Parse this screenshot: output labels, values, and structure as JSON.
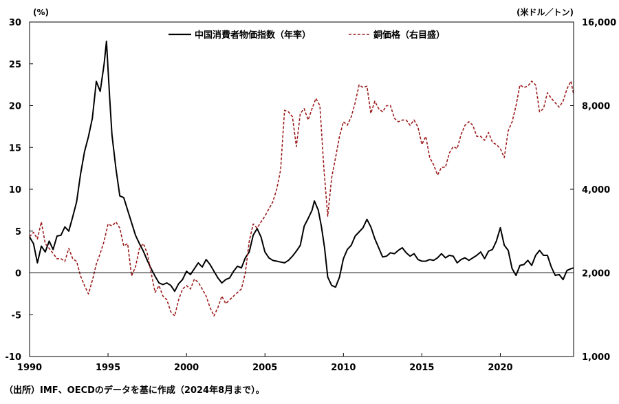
{
  "chart_data": {
    "type": "line",
    "x_ticks": [
      "1990",
      "1995",
      "2000",
      "2005",
      "2010",
      "2015",
      "2020"
    ],
    "xlim": [
      1990,
      2024.67
    ],
    "left_axis": {
      "unit": "(%)",
      "ylim": [
        -10,
        30
      ],
      "ticks": [
        30,
        25,
        20,
        15,
        10,
        5,
        0,
        -5,
        -10
      ],
      "tick_labels": [
        "30",
        "25",
        "20",
        "15",
        "10",
        "5",
        "0",
        "-5",
        "-10"
      ]
    },
    "right_axis": {
      "unit": "(米ドル／トン)",
      "scale": "log",
      "ylim": [
        1000,
        16000
      ],
      "ticks": [
        16000,
        8000,
        4000,
        2000,
        1000
      ],
      "tick_labels": [
        "16,000",
        "8,000",
        "4,000",
        "2,000",
        "1,000"
      ]
    },
    "legend_position": "top-center",
    "series": [
      {
        "name": "中国消費者物価指数（年率）",
        "axis": "left",
        "color": "#000000",
        "style": "solid",
        "points": [
          [
            1990.0,
            4.3
          ],
          [
            1990.25,
            3.5
          ],
          [
            1990.5,
            1.2
          ],
          [
            1990.75,
            3.2
          ],
          [
            1991.0,
            2.5
          ],
          [
            1991.25,
            3.8
          ],
          [
            1991.5,
            2.8
          ],
          [
            1991.75,
            4.4
          ],
          [
            1992.0,
            4.5
          ],
          [
            1992.25,
            5.5
          ],
          [
            1992.5,
            5.0
          ],
          [
            1992.75,
            6.7
          ],
          [
            1993.0,
            8.5
          ],
          [
            1993.25,
            11.8
          ],
          [
            1993.5,
            14.5
          ],
          [
            1993.75,
            16.3
          ],
          [
            1994.0,
            18.5
          ],
          [
            1994.25,
            22.9
          ],
          [
            1994.5,
            21.7
          ],
          [
            1994.75,
            25.0
          ],
          [
            1994.9,
            27.7
          ],
          [
            1995.1,
            21.0
          ],
          [
            1995.25,
            16.5
          ],
          [
            1995.5,
            12.5
          ],
          [
            1995.75,
            9.2
          ],
          [
            1996.0,
            9.0
          ],
          [
            1996.25,
            7.5
          ],
          [
            1996.5,
            6.0
          ],
          [
            1996.75,
            4.5
          ],
          [
            1997.0,
            3.5
          ],
          [
            1997.25,
            2.6
          ],
          [
            1997.5,
            1.5
          ],
          [
            1997.75,
            0.5
          ],
          [
            1998.0,
            -0.4
          ],
          [
            1998.25,
            -1.2
          ],
          [
            1998.5,
            -1.4
          ],
          [
            1998.75,
            -1.2
          ],
          [
            1999.0,
            -1.5
          ],
          [
            1999.25,
            -2.2
          ],
          [
            1999.5,
            -1.3
          ],
          [
            1999.75,
            -0.8
          ],
          [
            2000.0,
            0.2
          ],
          [
            2000.25,
            -0.2
          ],
          [
            2000.5,
            0.5
          ],
          [
            2000.75,
            1.2
          ],
          [
            2001.0,
            0.7
          ],
          [
            2001.25,
            1.6
          ],
          [
            2001.5,
            1.0
          ],
          [
            2001.75,
            0.2
          ],
          [
            2002.0,
            -0.6
          ],
          [
            2002.25,
            -1.2
          ],
          [
            2002.5,
            -0.8
          ],
          [
            2002.75,
            -0.6
          ],
          [
            2003.0,
            0.2
          ],
          [
            2003.25,
            0.8
          ],
          [
            2003.5,
            0.6
          ],
          [
            2003.75,
            1.8
          ],
          [
            2004.0,
            2.5
          ],
          [
            2004.25,
            4.5
          ],
          [
            2004.5,
            5.3
          ],
          [
            2004.75,
            4.3
          ],
          [
            2005.0,
            2.5
          ],
          [
            2005.25,
            1.8
          ],
          [
            2005.5,
            1.5
          ],
          [
            2005.75,
            1.4
          ],
          [
            2006.0,
            1.3
          ],
          [
            2006.25,
            1.2
          ],
          [
            2006.5,
            1.5
          ],
          [
            2006.75,
            2.0
          ],
          [
            2007.0,
            2.6
          ],
          [
            2007.25,
            3.3
          ],
          [
            2007.5,
            5.6
          ],
          [
            2007.75,
            6.5
          ],
          [
            2008.0,
            7.5
          ],
          [
            2008.15,
            8.6
          ],
          [
            2008.4,
            7.5
          ],
          [
            2008.6,
            5.5
          ],
          [
            2008.8,
            3.0
          ],
          [
            2009.0,
            -0.5
          ],
          [
            2009.25,
            -1.5
          ],
          [
            2009.5,
            -1.7
          ],
          [
            2009.75,
            -0.5
          ],
          [
            2010.0,
            1.7
          ],
          [
            2010.25,
            2.8
          ],
          [
            2010.5,
            3.3
          ],
          [
            2010.75,
            4.4
          ],
          [
            2011.0,
            4.9
          ],
          [
            2011.25,
            5.4
          ],
          [
            2011.5,
            6.4
          ],
          [
            2011.75,
            5.5
          ],
          [
            2012.0,
            4.1
          ],
          [
            2012.25,
            3.0
          ],
          [
            2012.5,
            1.9
          ],
          [
            2012.75,
            2.0
          ],
          [
            2013.0,
            2.4
          ],
          [
            2013.25,
            2.3
          ],
          [
            2013.5,
            2.7
          ],
          [
            2013.75,
            3.0
          ],
          [
            2014.0,
            2.4
          ],
          [
            2014.25,
            2.0
          ],
          [
            2014.5,
            2.3
          ],
          [
            2014.75,
            1.6
          ],
          [
            2015.0,
            1.4
          ],
          [
            2015.25,
            1.4
          ],
          [
            2015.5,
            1.6
          ],
          [
            2015.75,
            1.5
          ],
          [
            2016.0,
            1.8
          ],
          [
            2016.25,
            2.3
          ],
          [
            2016.5,
            1.8
          ],
          [
            2016.75,
            2.1
          ],
          [
            2017.0,
            2.0
          ],
          [
            2017.25,
            1.2
          ],
          [
            2017.5,
            1.6
          ],
          [
            2017.75,
            1.8
          ],
          [
            2018.0,
            1.5
          ],
          [
            2018.25,
            1.8
          ],
          [
            2018.5,
            2.1
          ],
          [
            2018.75,
            2.5
          ],
          [
            2019.0,
            1.7
          ],
          [
            2019.25,
            2.6
          ],
          [
            2019.5,
            2.8
          ],
          [
            2019.75,
            3.8
          ],
          [
            2020.0,
            5.4
          ],
          [
            2020.25,
            3.3
          ],
          [
            2020.5,
            2.7
          ],
          [
            2020.75,
            0.5
          ],
          [
            2021.0,
            -0.3
          ],
          [
            2021.25,
            0.9
          ],
          [
            2021.5,
            1.0
          ],
          [
            2021.75,
            1.5
          ],
          [
            2022.0,
            0.9
          ],
          [
            2022.25,
            2.1
          ],
          [
            2022.5,
            2.7
          ],
          [
            2022.75,
            2.1
          ],
          [
            2023.0,
            2.1
          ],
          [
            2023.25,
            0.7
          ],
          [
            2023.5,
            -0.3
          ],
          [
            2023.75,
            -0.2
          ],
          [
            2024.0,
            -0.8
          ],
          [
            2024.25,
            0.3
          ],
          [
            2024.5,
            0.5
          ],
          [
            2024.67,
            0.6
          ]
        ]
      },
      {
        "name": "銅価格（右目盛）",
        "axis": "right",
        "color": "#9b1b1b",
        "style": "dashed",
        "points": [
          [
            1990.0,
            2700
          ],
          [
            1990.25,
            2800
          ],
          [
            1990.5,
            2650
          ],
          [
            1990.75,
            3050
          ],
          [
            1991.0,
            2550
          ],
          [
            1991.25,
            2450
          ],
          [
            1991.5,
            2350
          ],
          [
            1991.75,
            2250
          ],
          [
            1992.0,
            2250
          ],
          [
            1992.25,
            2200
          ],
          [
            1992.5,
            2450
          ],
          [
            1992.75,
            2250
          ],
          [
            1993.0,
            2200
          ],
          [
            1993.25,
            1950
          ],
          [
            1993.5,
            1800
          ],
          [
            1993.75,
            1680
          ],
          [
            1994.0,
            1880
          ],
          [
            1994.25,
            2150
          ],
          [
            1994.5,
            2350
          ],
          [
            1994.75,
            2600
          ],
          [
            1995.0,
            3000
          ],
          [
            1995.25,
            2950
          ],
          [
            1995.5,
            3050
          ],
          [
            1995.75,
            2900
          ],
          [
            1996.0,
            2500
          ],
          [
            1996.25,
            2550
          ],
          [
            1996.5,
            1950
          ],
          [
            1996.75,
            2100
          ],
          [
            1997.0,
            2450
          ],
          [
            1997.25,
            2550
          ],
          [
            1997.5,
            2350
          ],
          [
            1997.75,
            2000
          ],
          [
            1998.0,
            1700
          ],
          [
            1998.25,
            1800
          ],
          [
            1998.5,
            1650
          ],
          [
            1998.75,
            1600
          ],
          [
            1999.0,
            1450
          ],
          [
            1999.25,
            1400
          ],
          [
            1999.5,
            1600
          ],
          [
            1999.75,
            1750
          ],
          [
            2000.0,
            1800
          ],
          [
            2000.25,
            1750
          ],
          [
            2000.5,
            1900
          ],
          [
            2000.75,
            1850
          ],
          [
            2001.0,
            1750
          ],
          [
            2001.25,
            1650
          ],
          [
            2001.5,
            1500
          ],
          [
            2001.75,
            1400
          ],
          [
            2002.0,
            1500
          ],
          [
            2002.25,
            1650
          ],
          [
            2002.5,
            1550
          ],
          [
            2002.75,
            1600
          ],
          [
            2003.0,
            1650
          ],
          [
            2003.25,
            1700
          ],
          [
            2003.5,
            1750
          ],
          [
            2003.75,
            2000
          ],
          [
            2004.0,
            2600
          ],
          [
            2004.25,
            3000
          ],
          [
            2004.5,
            2900
          ],
          [
            2004.75,
            3050
          ],
          [
            2005.0,
            3200
          ],
          [
            2005.25,
            3400
          ],
          [
            2005.5,
            3600
          ],
          [
            2005.75,
            4000
          ],
          [
            2006.0,
            4700
          ],
          [
            2006.25,
            7700
          ],
          [
            2006.5,
            7600
          ],
          [
            2006.75,
            7300
          ],
          [
            2007.0,
            5700
          ],
          [
            2007.25,
            7500
          ],
          [
            2007.5,
            7800
          ],
          [
            2007.75,
            7100
          ],
          [
            2008.0,
            7800
          ],
          [
            2008.25,
            8500
          ],
          [
            2008.5,
            8000
          ],
          [
            2008.75,
            4800
          ],
          [
            2009.0,
            3200
          ],
          [
            2009.25,
            4400
          ],
          [
            2009.5,
            5200
          ],
          [
            2009.75,
            6200
          ],
          [
            2010.0,
            7000
          ],
          [
            2010.25,
            6800
          ],
          [
            2010.5,
            7300
          ],
          [
            2010.75,
            8200
          ],
          [
            2011.0,
            9500
          ],
          [
            2011.25,
            9300
          ],
          [
            2011.5,
            9400
          ],
          [
            2011.75,
            7500
          ],
          [
            2012.0,
            8300
          ],
          [
            2012.25,
            7800
          ],
          [
            2012.5,
            7600
          ],
          [
            2012.75,
            8000
          ],
          [
            2013.0,
            8000
          ],
          [
            2013.25,
            7200
          ],
          [
            2013.5,
            7000
          ],
          [
            2013.75,
            7100
          ],
          [
            2014.0,
            7100
          ],
          [
            2014.25,
            6800
          ],
          [
            2014.5,
            7100
          ],
          [
            2014.75,
            6700
          ],
          [
            2015.0,
            5800
          ],
          [
            2015.25,
            6200
          ],
          [
            2015.5,
            5200
          ],
          [
            2015.75,
            4900
          ],
          [
            2016.0,
            4500
          ],
          [
            2016.25,
            4800
          ],
          [
            2016.5,
            4800
          ],
          [
            2016.75,
            5400
          ],
          [
            2017.0,
            5700
          ],
          [
            2017.25,
            5600
          ],
          [
            2017.5,
            6300
          ],
          [
            2017.75,
            6800
          ],
          [
            2018.0,
            7000
          ],
          [
            2018.25,
            6800
          ],
          [
            2018.5,
            6200
          ],
          [
            2018.75,
            6200
          ],
          [
            2019.0,
            6000
          ],
          [
            2019.25,
            6400
          ],
          [
            2019.5,
            5900
          ],
          [
            2019.75,
            5800
          ],
          [
            2020.0,
            5600
          ],
          [
            2020.25,
            5200
          ],
          [
            2020.5,
            6500
          ],
          [
            2020.75,
            7000
          ],
          [
            2021.0,
            8000
          ],
          [
            2021.25,
            9500
          ],
          [
            2021.5,
            9300
          ],
          [
            2021.75,
            9400
          ],
          [
            2022.0,
            9800
          ],
          [
            2022.25,
            9500
          ],
          [
            2022.5,
            7600
          ],
          [
            2022.75,
            7800
          ],
          [
            2023.0,
            8900
          ],
          [
            2023.25,
            8500
          ],
          [
            2023.5,
            8200
          ],
          [
            2023.75,
            7900
          ],
          [
            2024.0,
            8300
          ],
          [
            2024.25,
            9200
          ],
          [
            2024.5,
            9800
          ],
          [
            2024.67,
            8800
          ]
        ]
      }
    ]
  },
  "source": "（出所）IMF、OECDのデータを基に作成（2024年8月まで）。"
}
